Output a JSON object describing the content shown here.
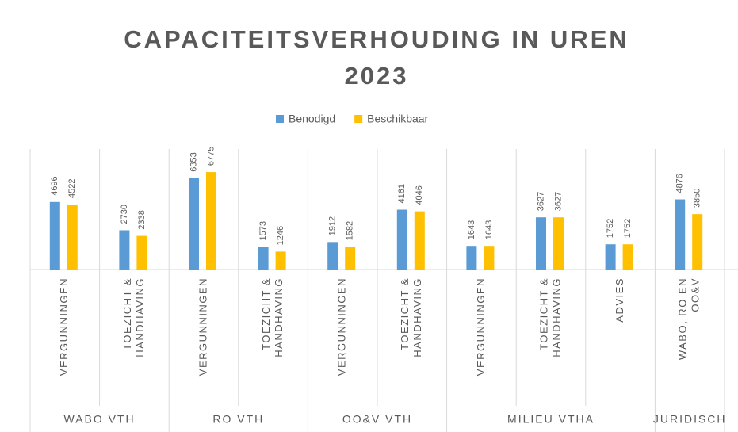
{
  "chart_data": {
    "type": "bar",
    "title": [
      "CAPACITEITSVERHOUDING IN UREN",
      "2023"
    ],
    "groups": [
      {
        "label": "WABO VTH",
        "categories": [
          [
            "VERGUNNINGEN"
          ],
          [
            "TOEZICHT &",
            "HANDHAVING"
          ]
        ]
      },
      {
        "label": "RO VTH",
        "categories": [
          [
            "VERGUNNINGEN"
          ],
          [
            "TOEZICHT &",
            "HANDHAVING"
          ]
        ]
      },
      {
        "label": "OO&V VTH",
        "categories": [
          [
            "VERGUNNINGEN"
          ],
          [
            "TOEZICHT &",
            "HANDHAVING"
          ]
        ]
      },
      {
        "label": "MILIEU VTHA",
        "categories": [
          [
            "VERGUNNINGEN"
          ],
          [
            "TOEZICHT &",
            "HANDHAVING"
          ],
          [
            "ADVIES"
          ]
        ]
      },
      {
        "label": "JURIDISCH",
        "categories": [
          [
            "WABO, RO EN",
            "OO&V"
          ]
        ]
      }
    ],
    "series": [
      {
        "name": "Benodigd",
        "color": "#5b9bd5",
        "values": [
          4696,
          2730,
          6353,
          1573,
          1912,
          4161,
          1643,
          3627,
          1752,
          4876
        ]
      },
      {
        "name": "Beschikbaar",
        "color": "#ffc000",
        "values": [
          4522,
          2338,
          6775,
          1246,
          1582,
          4046,
          1643,
          3627,
          1752,
          3850
        ]
      }
    ],
    "ylim": [
      0,
      7000
    ]
  }
}
